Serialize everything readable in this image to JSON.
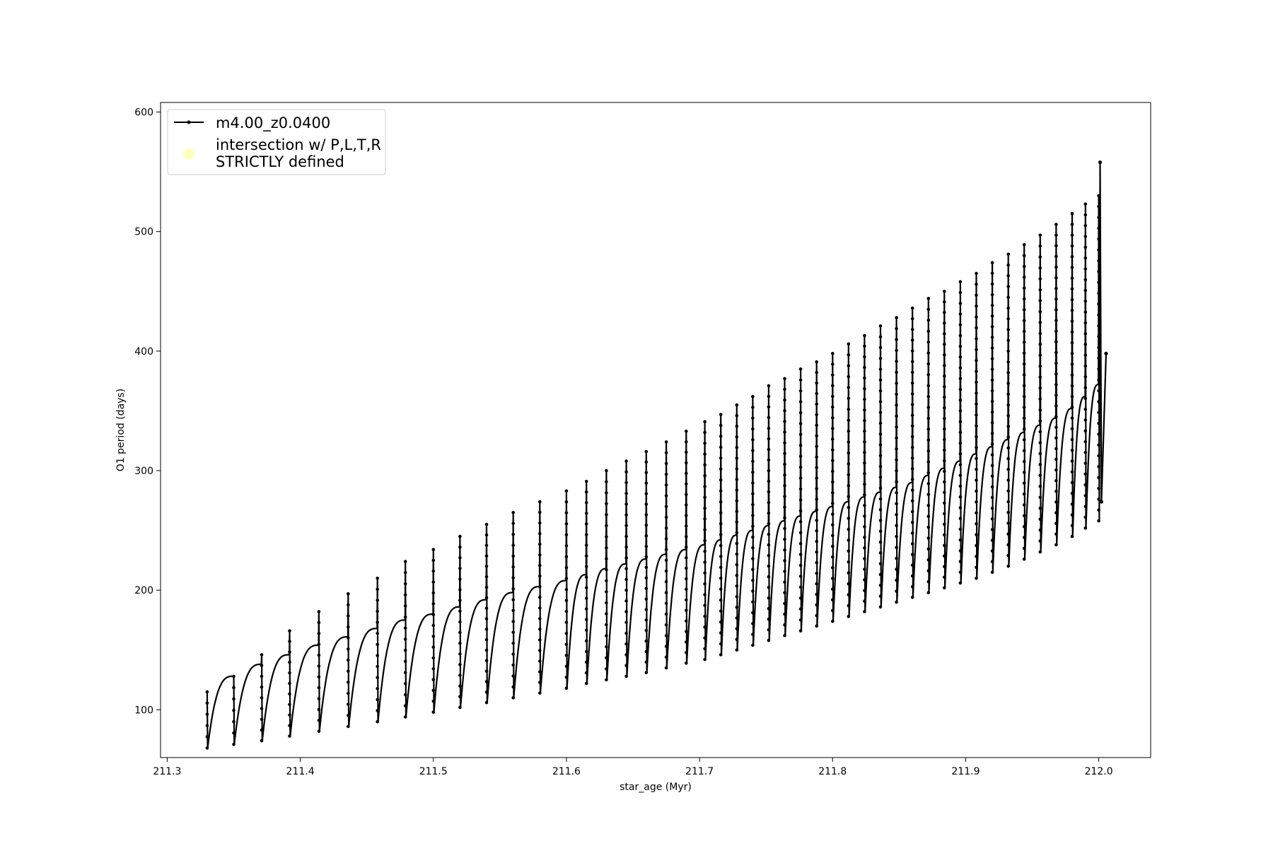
{
  "chart_data": {
    "type": "line",
    "xlabel": "star_age (Myr)",
    "ylabel": "O1 period (days)",
    "xlim": [
      211.295,
      212.039
    ],
    "ylim": [
      60,
      608
    ],
    "xticks": [
      211.3,
      211.4,
      211.5,
      211.6,
      211.7,
      211.8,
      211.9,
      212.0
    ],
    "xtick_labels": [
      "211.3",
      "211.4",
      "211.5",
      "211.6",
      "211.7",
      "211.8",
      "211.9",
      "212.0"
    ],
    "yticks": [
      100,
      200,
      300,
      400,
      500,
      600
    ],
    "ytick_labels": [
      "100",
      "200",
      "300",
      "400",
      "500",
      "600"
    ],
    "grid": false,
    "legend_position": "upper-left",
    "legend": [
      {
        "label": "m4.00_z0.0400",
        "marker": "line-with-dots",
        "color": "#000000"
      },
      {
        "label_lines": [
          "intersection w/ P,L,T,R",
          "STRICTLY defined"
        ],
        "marker": "circle",
        "color": "#ffffc0"
      }
    ],
    "series": [
      {
        "name": "m4.00_z0.0400",
        "color": "#000000",
        "description_of_shape": "sawtooth: each pulse starts with a sharp spike up to a peak, drops to a minimum, then rises smoothly to a plateau just before the next pulse",
        "pulses": {
          "start_age": [
            211.33,
            211.35,
            211.371,
            211.392,
            211.414,
            211.436,
            211.458,
            211.479,
            211.5,
            211.52,
            211.54,
            211.56,
            211.58,
            211.6,
            211.615,
            211.63,
            211.645,
            211.66,
            211.675,
            211.69,
            211.704,
            211.716,
            211.728,
            211.74,
            211.752,
            211.764,
            211.776,
            211.788,
            211.8,
            211.812,
            211.824,
            211.836,
            211.848,
            211.86,
            211.872,
            211.884,
            211.896,
            211.908,
            211.92,
            211.932,
            211.944,
            211.956,
            211.968,
            211.98,
            211.99,
            212.0
          ],
          "spike_peak": [
            115,
            128,
            146,
            166,
            182,
            197,
            210,
            224,
            234,
            245,
            255,
            265,
            274,
            283,
            291,
            300,
            308,
            316,
            324,
            333,
            341,
            347,
            355,
            362,
            371,
            377,
            385,
            391,
            398,
            406,
            413,
            421,
            428,
            436,
            444,
            450,
            458,
            465,
            474,
            481,
            489,
            497,
            506,
            515,
            523,
            530
          ],
          "minimum": [
            68,
            71,
            74,
            78,
            82,
            86,
            90,
            94,
            98,
            102,
            106,
            110,
            114,
            118,
            122,
            125,
            128,
            131,
            135,
            139,
            142,
            146,
            150,
            154,
            158,
            162,
            166,
            170,
            174,
            178,
            182,
            186,
            190,
            194,
            198,
            202,
            206,
            210,
            215,
            220,
            226,
            232,
            238,
            245,
            252,
            258
          ],
          "plateau": [
            128,
            138,
            146,
            154,
            161,
            168,
            175,
            180,
            186,
            192,
            198,
            203,
            208,
            213,
            218,
            222,
            226,
            230,
            234,
            238,
            242,
            246,
            250,
            254,
            258,
            262,
            266,
            270,
            274,
            278,
            282,
            286,
            290,
            296,
            302,
            308,
            314,
            320,
            326,
            332,
            338,
            344,
            352,
            362,
            372,
            384
          ]
        },
        "final_points": [
          {
            "x": 212.001,
            "y": 558
          },
          {
            "x": 212.002,
            "y": 274
          },
          {
            "x": 212.0055,
            "y": 398
          }
        ]
      }
    ]
  }
}
